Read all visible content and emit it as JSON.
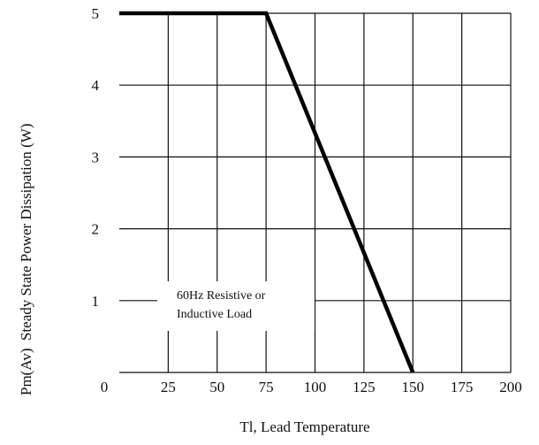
{
  "chart_data": {
    "type": "line",
    "xlabel": "Tl, Lead Temperature",
    "ylabel_left": "Pm(Av)",
    "ylabel_right": "Steady State Power Dissipation (W)",
    "x_ticks": [
      "0",
      "25",
      "50",
      "75",
      "100",
      "125",
      "150",
      "175",
      "200"
    ],
    "y_ticks": [
      "1",
      "2",
      "3",
      "4",
      "5"
    ],
    "xlim": [
      0,
      200
    ],
    "ylim": [
      0,
      5
    ],
    "grid": true,
    "annotation_lines": [
      "60Hz  Resistive   or",
      "Inductive Load"
    ],
    "series": [
      {
        "x": [
          0,
          75,
          150
        ],
        "y": [
          5,
          5,
          0
        ]
      }
    ]
  }
}
